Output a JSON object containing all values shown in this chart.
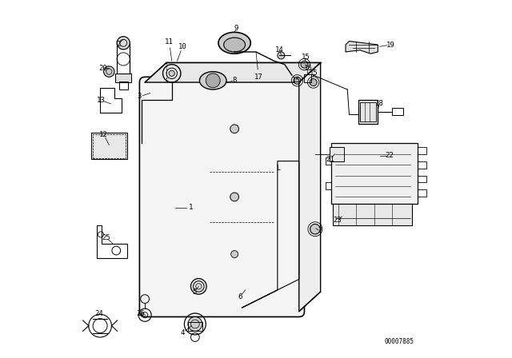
{
  "bg_color": "#ffffff",
  "line_color": "#000000",
  "fig_width": 6.4,
  "fig_height": 4.48,
  "dpi": 100,
  "part_number_text": "00007885"
}
